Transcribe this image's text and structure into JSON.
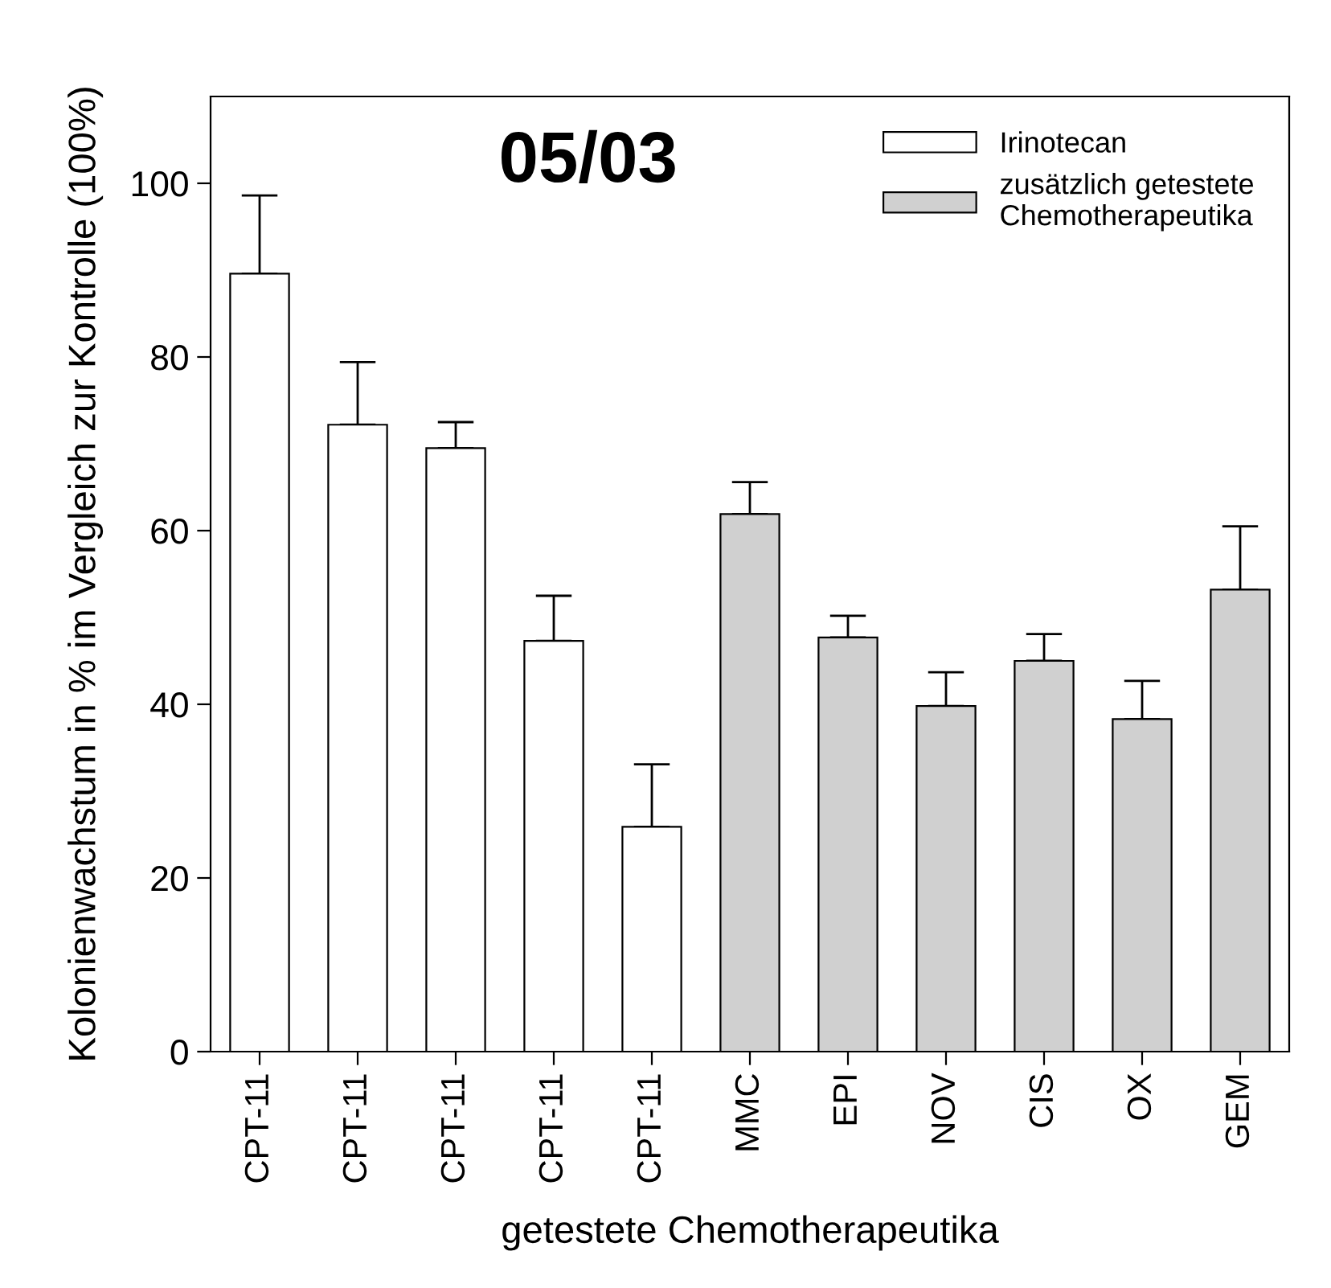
{
  "chart_data": {
    "type": "bar",
    "title": "05/03",
    "xlabel": "getestete Chemotherapeutika",
    "ylabel": "Kolonienwachstum in % im Vergleich zur Kontrolle (100%)",
    "categories": [
      "CPT-11",
      "CPT-11",
      "CPT-11",
      "CPT-11",
      "CPT-11",
      "MMC",
      "EPI",
      "NOV",
      "CIS",
      "OX",
      "GEM"
    ],
    "series": [
      {
        "name": "Irinotecan",
        "color": "#ffffff",
        "values": [
          89.6,
          72.2,
          69.5,
          47.3,
          25.9,
          null,
          null,
          null,
          null,
          null,
          null
        ],
        "errors": [
          [
            89.6,
            98.6
          ],
          [
            72.2,
            79.4
          ],
          [
            69.5,
            72.5
          ],
          [
            47.3,
            52.5
          ],
          [
            25.9,
            33.1
          ],
          null,
          null,
          null,
          null,
          null,
          null
        ]
      },
      {
        "name": "zusätzlich getestete\nChemotherapeutika",
        "color": "#d0d0d0",
        "values": [
          null,
          null,
          null,
          null,
          null,
          61.9,
          47.7,
          39.8,
          45.0,
          38.3,
          53.2
        ],
        "errors": [
          null,
          null,
          null,
          null,
          null,
          [
            61.9,
            65.6
          ],
          [
            47.7,
            50.2
          ],
          [
            39.8,
            43.7
          ],
          [
            45.0,
            48.1
          ],
          [
            38.3,
            42.7
          ],
          [
            53.2,
            60.5
          ]
        ]
      }
    ],
    "ylim": [
      0,
      110
    ],
    "yticks": [
      0,
      20,
      40,
      60,
      80,
      100
    ],
    "grid": false,
    "legend": "top right"
  }
}
